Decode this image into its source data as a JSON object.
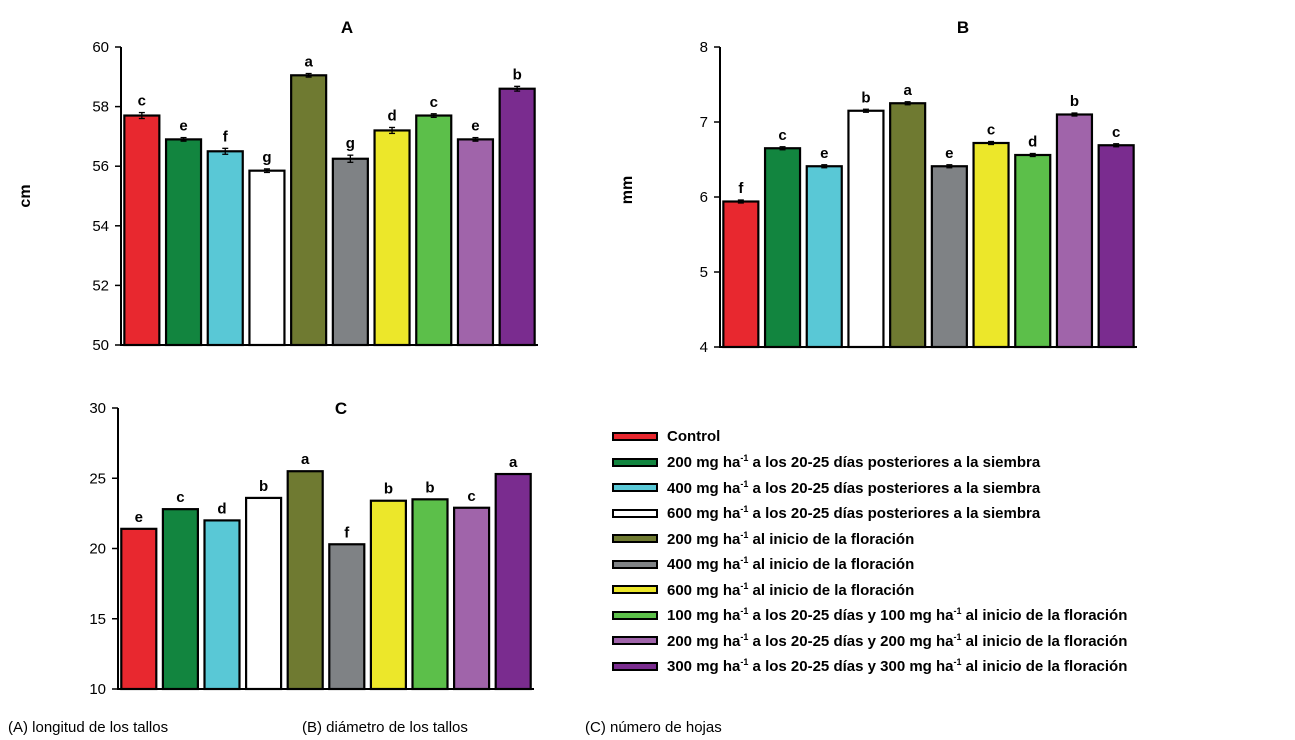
{
  "captions": [
    "(A) longitud de los tallos",
    "(B) diámetro de los tallos",
    "(C) número de hojas"
  ],
  "legend": [
    {
      "pre": "Control",
      "post": "",
      "color": "#e8282f"
    },
    {
      "pre": "200 mg ha",
      "post": " a los 20-25 días posteriores a la siembra",
      "color": "#12853f"
    },
    {
      "pre": "400 mg ha",
      "post": " a los 20-25 días posteriores a la siembra",
      "color": "#59c8d6"
    },
    {
      "pre": "600 mg ha",
      "post": " a los 20-25 días posteriores a la siembra",
      "color": "#ffffff"
    },
    {
      "pre": "200 mg ha",
      "post": " al inicio de la floración",
      "color": "#6f7a31"
    },
    {
      "pre": "400 mg ha",
      "post": " al inicio de la floración",
      "color": "#7f8285"
    },
    {
      "pre": "600 mg ha",
      "post": " al inicio de la floración",
      "color": "#ece72a"
    },
    {
      "pre": "100 mg ha",
      "post": " a los 20-25 días y 100 mg ha-1 al inicio de la floración",
      "color": "#5cbf4a"
    },
    {
      "pre": "200 mg ha",
      "post": " a los 20-25 días y 200 mg ha-1 al inicio de la floración",
      "color": "#a064aa"
    },
    {
      "pre": "300 mg ha",
      "post": " a los 20-25 días y 300 mg ha-1 al inicio de la floración",
      "color": "#7a2c8f"
    }
  ],
  "chart_data": [
    {
      "type": "bar",
      "title": "A",
      "ylabel": "cm",
      "ylim": [
        50,
        60
      ],
      "yticks": [
        50,
        52,
        54,
        56,
        58,
        60
      ],
      "values": [
        57.7,
        56.9,
        56.5,
        55.85,
        59.05,
        56.25,
        57.2,
        57.7,
        56.9,
        58.6
      ],
      "errors": [
        0.1,
        0.06,
        0.1,
        0.06,
        0.06,
        0.12,
        0.1,
        0.06,
        0.06,
        0.08
      ],
      "letters": [
        "c",
        "e",
        "f",
        "g",
        "a",
        "g",
        "d",
        "c",
        "e",
        "b"
      ]
    },
    {
      "type": "bar",
      "title": "B",
      "ylabel": "mm",
      "ylim": [
        4,
        8
      ],
      "yticks": [
        4,
        5,
        6,
        7,
        8
      ],
      "values": [
        5.94,
        6.65,
        6.41,
        7.15,
        7.25,
        6.41,
        6.72,
        6.56,
        7.1,
        6.69
      ],
      "errors": [
        0.02,
        0.02,
        0.02,
        0.02,
        0.02,
        0.02,
        0.02,
        0.02,
        0.02,
        0.02
      ],
      "letters": [
        "f",
        "c",
        "e",
        "b",
        "a",
        "e",
        "c",
        "d",
        "b",
        "c"
      ]
    },
    {
      "type": "bar",
      "title": "C",
      "ylabel": "",
      "ylim": [
        10,
        30
      ],
      "yticks": [
        10,
        15,
        20,
        25,
        30
      ],
      "values": [
        21.4,
        22.8,
        22.0,
        23.6,
        25.5,
        20.3,
        23.4,
        23.5,
        22.9,
        25.3
      ],
      "errors": [
        0,
        0,
        0,
        0,
        0,
        0,
        0,
        0,
        0,
        0
      ],
      "letters": [
        "e",
        "c",
        "d",
        "b",
        "a",
        "f",
        "b",
        "b",
        "c",
        "a"
      ]
    }
  ]
}
